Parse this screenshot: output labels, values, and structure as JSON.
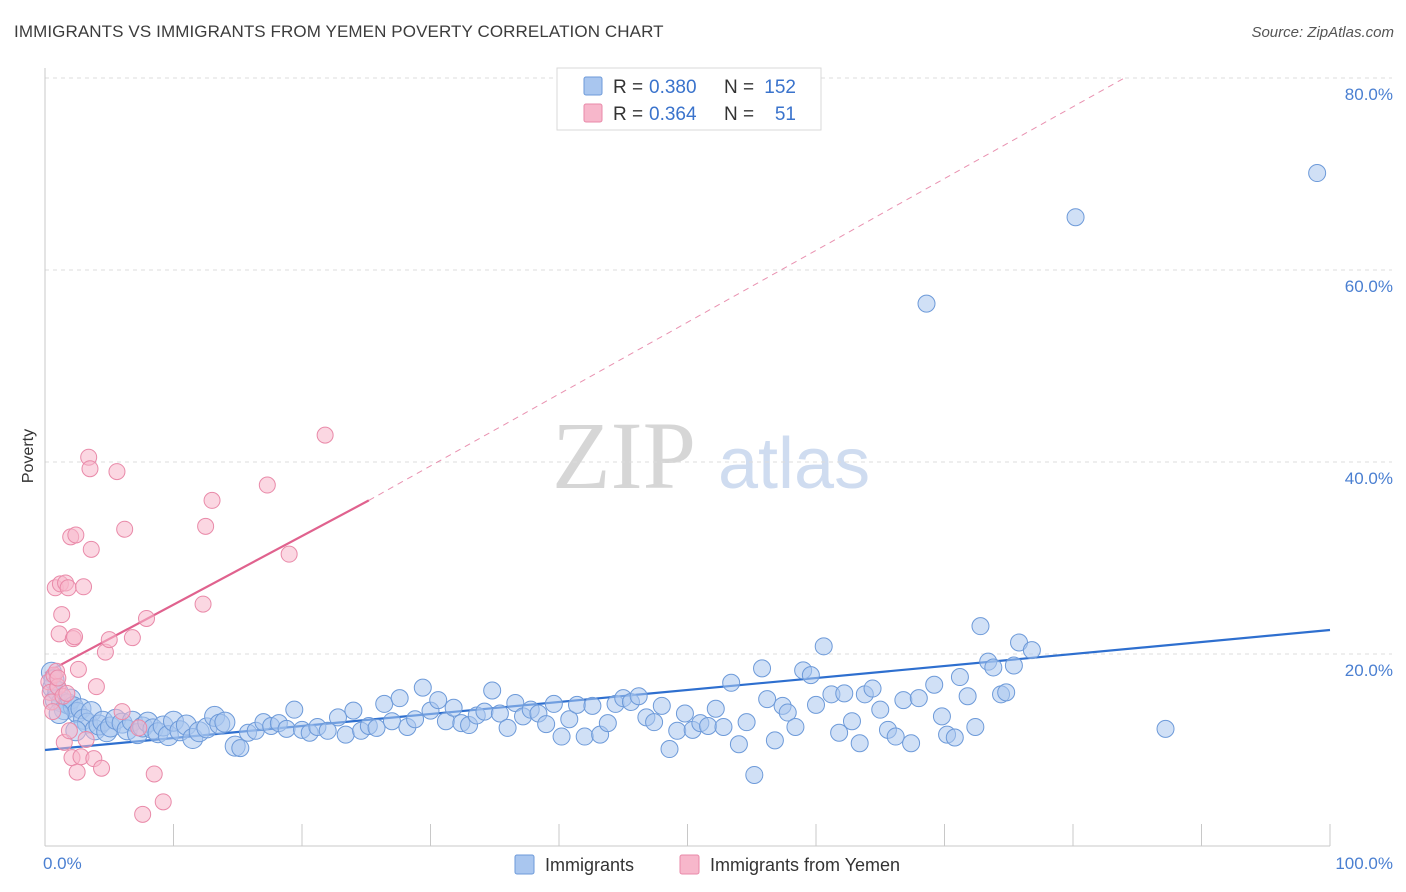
{
  "title": "IMMIGRANTS VS IMMIGRANTS FROM YEMEN POVERTY CORRELATION CHART",
  "source": "Source: ZipAtlas.com",
  "watermark": {
    "zip": "ZIP",
    "atlas": "atlas"
  },
  "colors": {
    "immigrants_fill": "#a9c6ef",
    "immigrants_stroke": "#6d9ad9",
    "immigrants_line": "#2e6fcf",
    "yemen_fill": "#f7b7cb",
    "yemen_stroke": "#e98aa9",
    "yemen_line": "#e0628e",
    "grid": "#dcdcdc",
    "tick_label": "#4a7fd1"
  },
  "legend": {
    "rows": [
      {
        "r_label": "R = ",
        "r_value": "0.380",
        "n_label": "N = ",
        "n_value": "152"
      },
      {
        "r_label": "R = ",
        "r_value": "0.364",
        "n_label": "N = ",
        "n_value": "51"
      }
    ]
  },
  "bottom_legend": [
    "Immigrants",
    "Immigrants from Yemen"
  ],
  "chart_data": {
    "type": "scatter",
    "title": "IMMIGRANTS VS IMMIGRANTS FROM YEMEN POVERTY CORRELATION CHART",
    "xlabel": "",
    "ylabel": "Poverty",
    "xlim": [
      0,
      100
    ],
    "ylim": [
      0,
      82
    ],
    "x_tick_labels": [
      "0.0%",
      "100.0%"
    ],
    "y_ticks": [
      20,
      40,
      60,
      80
    ],
    "y_tick_labels": [
      "20.0%",
      "40.0%",
      "60.0%",
      "80.0%"
    ],
    "grid": true,
    "legend_position": "top-center",
    "series": [
      {
        "name": "Immigrants",
        "r": 0.38,
        "n": 152,
        "trend": {
          "x0": 0,
          "y0": 10.0,
          "x1": 100,
          "y1": 22.5,
          "style": "solid"
        },
        "points": [
          [
            0.5,
            18.1
          ],
          [
            0.6,
            16.5
          ],
          [
            0.7,
            17.3
          ],
          [
            0.8,
            15.2
          ],
          [
            1.0,
            16.1
          ],
          [
            1.3,
            15.0
          ],
          [
            1.5,
            14.2
          ],
          [
            1.8,
            14.8
          ],
          [
            2.0,
            15.3
          ],
          [
            2.2,
            14.5
          ],
          [
            2.5,
            13.9
          ],
          [
            2.8,
            14.3
          ],
          [
            3.0,
            13.2
          ],
          [
            3.3,
            12.8
          ],
          [
            3.6,
            14.0
          ],
          [
            3.9,
            12.1
          ],
          [
            4.2,
            12.6
          ],
          [
            4.5,
            13.0
          ],
          [
            4.8,
            11.9
          ],
          [
            5.1,
            12.4
          ],
          [
            5.5,
            13.2
          ],
          [
            6.0,
            12.8
          ],
          [
            6.4,
            12.1
          ],
          [
            6.8,
            13.0
          ],
          [
            7.2,
            11.7
          ],
          [
            7.6,
            12.4
          ],
          [
            8.0,
            12.9
          ],
          [
            8.4,
            12.2
          ],
          [
            8.8,
            11.8
          ],
          [
            9.2,
            12.5
          ],
          [
            9.6,
            11.5
          ],
          [
            10.0,
            13.0
          ],
          [
            10.5,
            12.0
          ],
          [
            11.0,
            12.6
          ],
          [
            11.5,
            11.2
          ],
          [
            12.0,
            11.9
          ],
          [
            12.6,
            12.3
          ],
          [
            13.2,
            13.5
          ],
          [
            13.6,
            12.7
          ],
          [
            14.0,
            12.9
          ],
          [
            14.8,
            10.4
          ],
          [
            15.2,
            10.2
          ],
          [
            15.8,
            11.8
          ],
          [
            16.4,
            12.0
          ],
          [
            17.0,
            12.9
          ],
          [
            17.6,
            12.5
          ],
          [
            18.2,
            12.8
          ],
          [
            18.8,
            12.2
          ],
          [
            19.4,
            14.2
          ],
          [
            20.0,
            12.1
          ],
          [
            20.6,
            11.8
          ],
          [
            21.2,
            12.4
          ],
          [
            22.0,
            12.0
          ],
          [
            22.8,
            13.4
          ],
          [
            23.4,
            11.6
          ],
          [
            24.0,
            14.1
          ],
          [
            24.6,
            12.0
          ],
          [
            25.2,
            12.5
          ],
          [
            25.8,
            12.3
          ],
          [
            26.4,
            14.8
          ],
          [
            27.0,
            13.0
          ],
          [
            27.6,
            15.4
          ],
          [
            28.2,
            12.4
          ],
          [
            28.8,
            13.2
          ],
          [
            29.4,
            16.5
          ],
          [
            30.0,
            14.1
          ],
          [
            30.6,
            15.2
          ],
          [
            31.2,
            13.0
          ],
          [
            31.8,
            14.4
          ],
          [
            32.4,
            12.8
          ],
          [
            33.0,
            12.6
          ],
          [
            33.6,
            13.6
          ],
          [
            34.2,
            14.0
          ],
          [
            34.8,
            16.2
          ],
          [
            35.4,
            13.8
          ],
          [
            36.0,
            12.3
          ],
          [
            36.6,
            14.9
          ],
          [
            37.2,
            13.5
          ],
          [
            37.8,
            14.2
          ],
          [
            38.4,
            13.8
          ],
          [
            39.0,
            12.7
          ],
          [
            39.6,
            14.8
          ],
          [
            40.2,
            11.4
          ],
          [
            40.8,
            13.2
          ],
          [
            41.4,
            14.7
          ],
          [
            42.0,
            11.4
          ],
          [
            42.6,
            14.6
          ],
          [
            43.2,
            11.6
          ],
          [
            43.8,
            12.8
          ],
          [
            44.4,
            14.8
          ],
          [
            45.0,
            15.4
          ],
          [
            45.6,
            15.0
          ],
          [
            46.2,
            15.6
          ],
          [
            46.8,
            13.4
          ],
          [
            47.4,
            12.9
          ],
          [
            48.0,
            14.6
          ],
          [
            48.6,
            10.1
          ],
          [
            49.2,
            12.0
          ],
          [
            49.8,
            13.8
          ],
          [
            50.4,
            12.1
          ],
          [
            51.0,
            12.8
          ],
          [
            51.6,
            12.5
          ],
          [
            52.2,
            14.3
          ],
          [
            52.8,
            12.4
          ],
          [
            53.4,
            17.0
          ],
          [
            54.0,
            10.6
          ],
          [
            54.6,
            12.9
          ],
          [
            55.2,
            7.4
          ],
          [
            55.8,
            18.5
          ],
          [
            56.2,
            15.3
          ],
          [
            56.8,
            11.0
          ],
          [
            57.4,
            14.6
          ],
          [
            57.8,
            13.9
          ],
          [
            58.4,
            12.4
          ],
          [
            59.0,
            18.3
          ],
          [
            59.6,
            17.8
          ],
          [
            60.0,
            14.7
          ],
          [
            60.6,
            20.8
          ],
          [
            61.2,
            15.8
          ],
          [
            61.8,
            11.8
          ],
          [
            62.2,
            15.9
          ],
          [
            62.8,
            13.0
          ],
          [
            63.4,
            10.7
          ],
          [
            63.8,
            15.8
          ],
          [
            64.4,
            16.4
          ],
          [
            65.0,
            14.2
          ],
          [
            65.6,
            12.1
          ],
          [
            66.2,
            11.4
          ],
          [
            66.8,
            15.2
          ],
          [
            67.4,
            10.7
          ],
          [
            68.0,
            15.4
          ],
          [
            68.6,
            56.5
          ],
          [
            69.2,
            16.8
          ],
          [
            69.8,
            13.5
          ],
          [
            70.2,
            11.6
          ],
          [
            70.8,
            11.3
          ],
          [
            71.2,
            17.6
          ],
          [
            71.8,
            15.6
          ],
          [
            72.4,
            12.4
          ],
          [
            72.8,
            22.9
          ],
          [
            73.4,
            19.2
          ],
          [
            73.8,
            18.6
          ],
          [
            74.4,
            15.8
          ],
          [
            74.8,
            16.0
          ],
          [
            75.4,
            18.8
          ],
          [
            75.8,
            21.2
          ],
          [
            76.8,
            20.4
          ],
          [
            80.2,
            65.5
          ],
          [
            87.2,
            12.2
          ],
          [
            99.0,
            70.1
          ],
          [
            1.1,
            13.8
          ],
          [
            2.4,
            12.0
          ]
        ]
      },
      {
        "name": "Immigrants from Yemen",
        "r": 0.364,
        "n": 51,
        "trend": {
          "x0": 0,
          "y0": 18.0,
          "x1": 25.2,
          "y1": 36.0,
          "style": "solid"
        },
        "trend_extended": {
          "x0": 25.2,
          "y0": 36.0,
          "x1": 84.0,
          "y1": 80.0,
          "style": "dashed"
        },
        "points": [
          [
            0.3,
            17.1
          ],
          [
            0.4,
            16.0
          ],
          [
            0.5,
            15.0
          ],
          [
            0.6,
            14.0
          ],
          [
            0.7,
            17.8
          ],
          [
            0.8,
            26.9
          ],
          [
            0.9,
            18.2
          ],
          [
            1.0,
            16.6
          ],
          [
            1.1,
            22.1
          ],
          [
            1.2,
            27.3
          ],
          [
            1.3,
            24.1
          ],
          [
            1.4,
            15.6
          ],
          [
            1.5,
            10.8
          ],
          [
            1.6,
            27.4
          ],
          [
            1.7,
            15.9
          ],
          [
            1.8,
            26.9
          ],
          [
            1.9,
            12.0
          ],
          [
            2.0,
            32.2
          ],
          [
            2.1,
            9.2
          ],
          [
            2.2,
            21.6
          ],
          [
            2.3,
            21.8
          ],
          [
            2.4,
            32.4
          ],
          [
            2.5,
            7.7
          ],
          [
            2.6,
            18.4
          ],
          [
            2.8,
            9.3
          ],
          [
            3.0,
            27.0
          ],
          [
            3.2,
            11.1
          ],
          [
            3.4,
            40.5
          ],
          [
            3.5,
            39.3
          ],
          [
            3.6,
            30.9
          ],
          [
            3.8,
            9.1
          ],
          [
            4.0,
            16.6
          ],
          [
            4.4,
            8.1
          ],
          [
            4.7,
            20.2
          ],
          [
            5.0,
            21.5
          ],
          [
            5.6,
            39.0
          ],
          [
            6.0,
            14.0
          ],
          [
            6.2,
            33.0
          ],
          [
            6.8,
            21.7
          ],
          [
            7.3,
            12.3
          ],
          [
            7.6,
            3.3
          ],
          [
            7.9,
            23.7
          ],
          [
            8.5,
            7.5
          ],
          [
            9.2,
            4.6
          ],
          [
            12.3,
            25.2
          ],
          [
            12.5,
            33.3
          ],
          [
            13.0,
            36.0
          ],
          [
            17.3,
            37.6
          ],
          [
            19.0,
            30.4
          ],
          [
            21.8,
            42.8
          ],
          [
            1.0,
            17.5
          ]
        ]
      }
    ]
  }
}
